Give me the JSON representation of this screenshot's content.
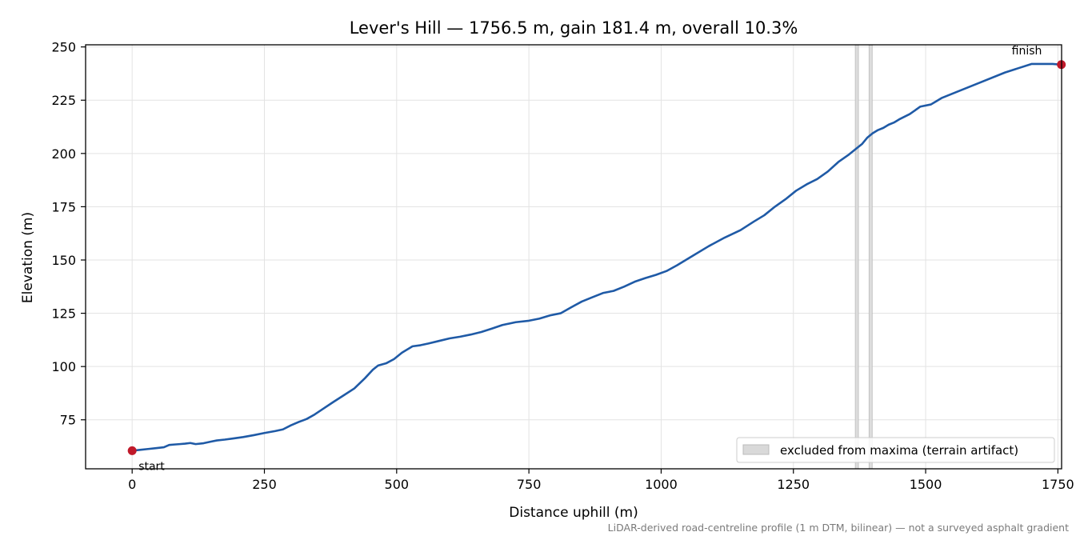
{
  "chart_data": {
    "type": "line",
    "title": "Lever's Hill — 1756.5 m, gain 181.4 m, overall 10.3%",
    "xlabel": "Distance uphill (m)",
    "ylabel": "Elevation (m)",
    "xlim": [
      -88,
      1757
    ],
    "ylim": [
      52,
      251
    ],
    "xticks": [
      0,
      250,
      500,
      750,
      1000,
      1250,
      1500,
      1750
    ],
    "yticks": [
      75,
      100,
      125,
      150,
      175,
      200,
      225,
      250
    ],
    "grid": true,
    "line_color": "#1f5aa6",
    "marker_color": "#c0192a",
    "series": [
      {
        "x": [
          0,
          15,
          30,
          45,
          60,
          70,
          80,
          90,
          100,
          110,
          120,
          135,
          150,
          160,
          175,
          190,
          210,
          230,
          250,
          270,
          285,
          300,
          315,
          330,
          345,
          360,
          380,
          400,
          420,
          440,
          455,
          465,
          480,
          495,
          510,
          530,
          545,
          560,
          580,
          600,
          620,
          640,
          660,
          680,
          700,
          725,
          750,
          770,
          790,
          810,
          830,
          850,
          870,
          890,
          910,
          930,
          950,
          970,
          990,
          1010,
          1030,
          1060,
          1090,
          1120,
          1150,
          1175,
          1195,
          1215,
          1235,
          1255,
          1275,
          1295,
          1315,
          1335,
          1355,
          1370,
          1380,
          1390,
          1400,
          1410,
          1420,
          1430,
          1440,
          1450,
          1470,
          1490,
          1510,
          1520,
          1530,
          1560,
          1600,
          1650,
          1700,
          1740,
          1756.5
        ],
        "y": [
          60.5,
          60.9,
          61.3,
          61.7,
          62.1,
          63.2,
          63.4,
          63.6,
          63.8,
          64.1,
          63.6,
          64.0,
          64.8,
          65.3,
          65.7,
          66.2,
          66.9,
          67.8,
          68.8,
          69.7,
          70.5,
          72.4,
          74.0,
          75.4,
          77.5,
          80.0,
          83.3,
          86.5,
          89.7,
          94.5,
          98.5,
          100.5,
          101.5,
          103.5,
          106.5,
          109.5,
          110.0,
          110.8,
          112.0,
          113.2,
          114.0,
          115.0,
          116.2,
          117.8,
          119.5,
          120.8,
          121.5,
          122.5,
          124.0,
          125.0,
          127.8,
          130.5,
          132.5,
          134.5,
          135.5,
          137.5,
          139.8,
          141.5,
          143.0,
          144.8,
          147.5,
          152.0,
          156.5,
          160.5,
          164.0,
          168.0,
          171.0,
          175.0,
          178.5,
          182.5,
          185.5,
          188.0,
          191.5,
          196.0,
          199.5,
          202.5,
          204.5,
          207.5,
          209.5,
          211.0,
          212.0,
          213.5,
          214.5,
          216.0,
          218.5,
          222.0,
          223.0,
          224.5,
          226.0,
          229.0,
          233.0,
          238.0,
          242.0,
          242.0,
          241.7
        ]
      }
    ],
    "excluded_bands": [
      [
        1367,
        1373
      ],
      [
        1393,
        1399
      ]
    ],
    "start_label": "start",
    "finish_label": "finish",
    "legend": {
      "placement": "lower-right",
      "entry": "excluded from maxima (terrain artifact)"
    },
    "footnote": "LiDAR-derived road-centreline profile (1 m DTM, bilinear) — not a surveyed asphalt gradient"
  }
}
